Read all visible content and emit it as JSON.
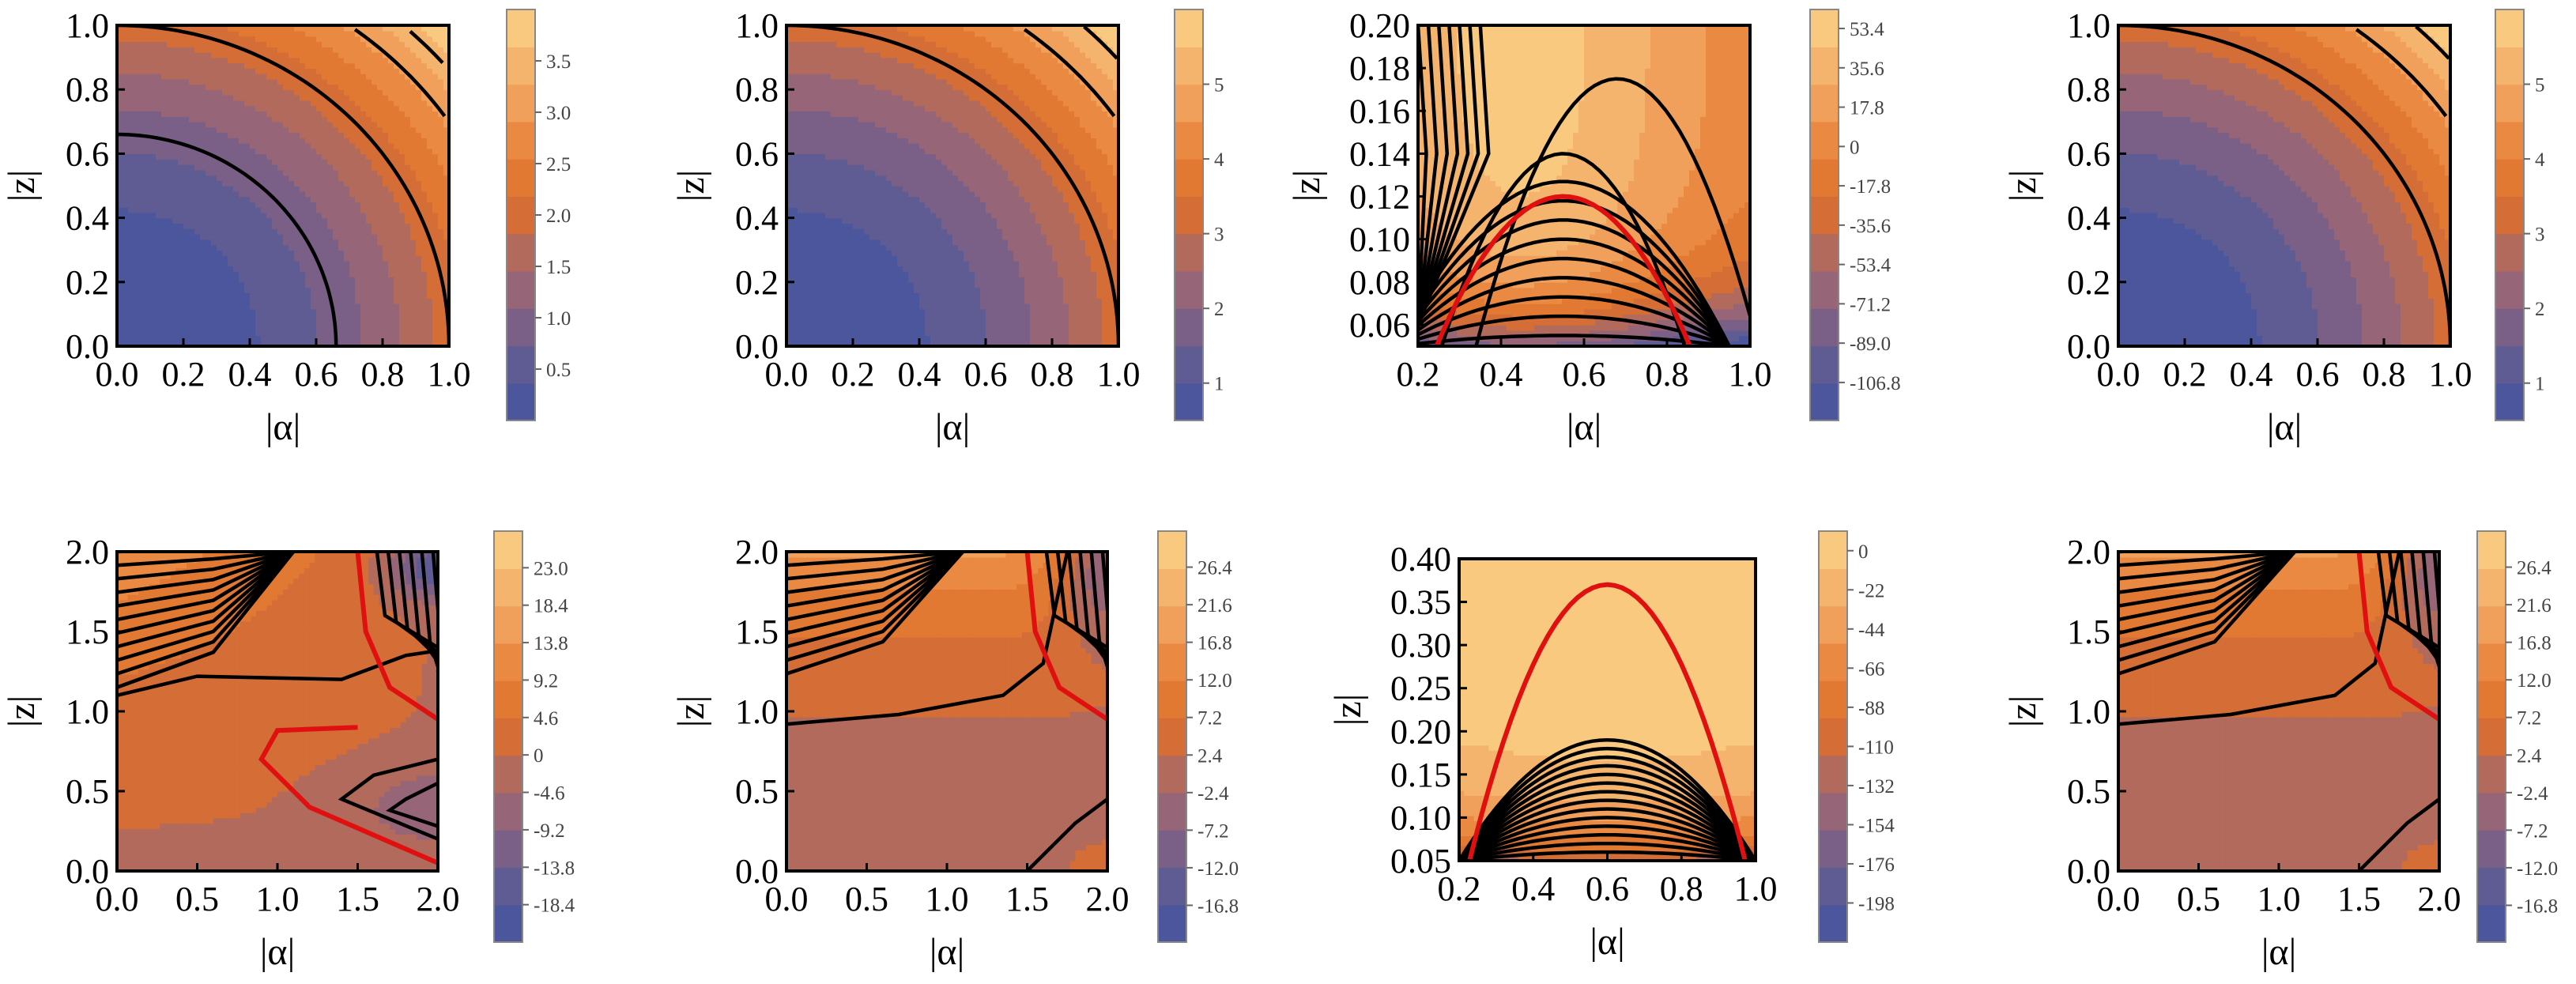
{
  "palette": {
    "ramp": [
      "#4b569c",
      "#5f5b93",
      "#7a5f87",
      "#966577",
      "#b16a5c",
      "#d46d36",
      "#e27933",
      "#ea8a42",
      "#f0a05a",
      "#f5b46e",
      "#f8c97e"
    ],
    "contour": "#000000",
    "highlight": "#e01010"
  },
  "chart_data": [
    {
      "id": "p1",
      "type": "contour",
      "xlabel": "|α|",
      "ylabel": "|z|",
      "xlim": [
        0,
        1
      ],
      "ylim": [
        0,
        1
      ],
      "xticks": [
        "0.0",
        "0.2",
        "0.4",
        "0.6",
        "0.8",
        "1.0"
      ],
      "yticks": [
        "0.0",
        "0.2",
        "0.4",
        "0.6",
        "0.8",
        "1.0"
      ],
      "colorbar": {
        "min": 0,
        "max": 4,
        "labels": [
          "0.5",
          "1.0",
          "1.5",
          "2.0",
          "2.5",
          "3.0",
          "3.5"
        ]
      }
    },
    {
      "id": "p2",
      "type": "contour",
      "xlabel": "|α|",
      "ylabel": "|z|",
      "xlim": [
        0,
        1
      ],
      "ylim": [
        0,
        1
      ],
      "xticks": [
        "0.0",
        "0.2",
        "0.4",
        "0.6",
        "0.8",
        "1.0"
      ],
      "yticks": [
        "0.0",
        "0.2",
        "0.4",
        "0.6",
        "0.8",
        "1.0"
      ],
      "colorbar": {
        "min": 0.5,
        "max": 6,
        "labels": [
          "1",
          "2",
          "3",
          "4",
          "5"
        ]
      }
    },
    {
      "id": "p3",
      "type": "contour",
      "xlabel": "|α|",
      "ylabel": "|z|",
      "xlim": [
        0.2,
        1
      ],
      "ylim": [
        0.05,
        0.2
      ],
      "xticks": [
        "0.2",
        "0.4",
        "0.6",
        "0.8",
        "1.0"
      ],
      "yticks": [
        "0.06",
        "0.08",
        "0.10",
        "0.12",
        "0.14",
        "0.16",
        "0.18",
        "0.20"
      ],
      "colorbar": {
        "min": -124,
        "max": 62,
        "labels": [
          "-106.8",
          "-89.0",
          "-71.2",
          "-53.4",
          "-35.6",
          "-17.8",
          "0",
          "17.8",
          "35.6",
          "53.4"
        ]
      }
    },
    {
      "id": "p4",
      "type": "contour",
      "xlabel": "|α|",
      "ylabel": "|z|",
      "xlim": [
        0,
        1
      ],
      "ylim": [
        0,
        1
      ],
      "xticks": [
        "0.0",
        "0.2",
        "0.4",
        "0.6",
        "0.8",
        "1.0"
      ],
      "yticks": [
        "0.0",
        "0.2",
        "0.4",
        "0.6",
        "0.8",
        "1.0"
      ],
      "colorbar": {
        "min": 0.5,
        "max": 6,
        "labels": [
          "1",
          "2",
          "3",
          "4",
          "5"
        ]
      }
    },
    {
      "id": "p5",
      "type": "contour",
      "xlabel": "|α|",
      "ylabel": "|z|",
      "xlim": [
        0,
        2
      ],
      "ylim": [
        0,
        2
      ],
      "xticks": [
        "0.0",
        "0.5",
        "1.0",
        "1.5",
        "2.0"
      ],
      "yticks": [
        "0.0",
        "0.5",
        "1.0",
        "1.5",
        "2.0"
      ],
      "colorbar": {
        "min": -23,
        "max": 27.5,
        "labels": [
          "-18.4",
          "-13.8",
          "-9.2",
          "-4.6",
          "0",
          "4.6",
          "9.2",
          "13.8",
          "18.4",
          "23.0"
        ]
      }
    },
    {
      "id": "p6",
      "type": "contour",
      "xlabel": "|α|",
      "ylabel": "|z|",
      "xlim": [
        0,
        2
      ],
      "ylim": [
        0,
        2
      ],
      "xticks": [
        "0.0",
        "0.5",
        "1.0",
        "1.5",
        "2.0"
      ],
      "yticks": [
        "0.0",
        "0.5",
        "1.0",
        "1.5",
        "2.0"
      ],
      "colorbar": {
        "min": -21.5,
        "max": 31,
        "labels": [
          "-16.8",
          "-12.0",
          "-7.2",
          "-2.4",
          "2.4",
          "7.2",
          "12.0",
          "16.8",
          "21.6",
          "26.4"
        ]
      }
    },
    {
      "id": "p7",
      "type": "contour",
      "xlabel": "|α|",
      "ylabel": "|z|",
      "xlim": [
        0.2,
        1
      ],
      "ylim": [
        0.05,
        0.4
      ],
      "xticks": [
        "0.2",
        "0.4",
        "0.6",
        "0.8",
        "1.0"
      ],
      "yticks": [
        "0.05",
        "0.10",
        "0.15",
        "0.20",
        "0.25",
        "0.30",
        "0.35",
        "0.40"
      ],
      "colorbar": {
        "min": -220,
        "max": 11,
        "labels": [
          "-198",
          "-176",
          "-154",
          "-132",
          "-110",
          "-88",
          "-66",
          "-44",
          "-22",
          "0"
        ]
      }
    },
    {
      "id": "p8",
      "type": "contour",
      "xlabel": "|α|",
      "ylabel": "|z|",
      "xlim": [
        0,
        2
      ],
      "ylim": [
        0,
        2
      ],
      "xticks": [
        "0.0",
        "0.5",
        "1.0",
        "1.5",
        "2.0"
      ],
      "yticks": [
        "0.0",
        "0.5",
        "1.0",
        "1.5",
        "2.0"
      ],
      "colorbar": {
        "min": -21.5,
        "max": 31,
        "labels": [
          "-16.8",
          "-12.0",
          "-7.2",
          "-2.4",
          "2.4",
          "7.2",
          "12.0",
          "16.8",
          "21.6",
          "26.4"
        ]
      }
    }
  ]
}
